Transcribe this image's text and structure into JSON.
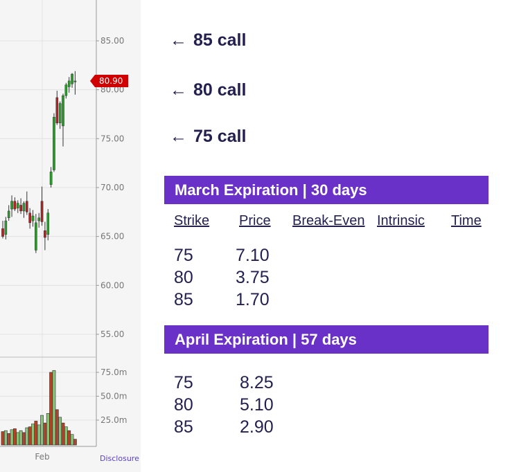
{
  "chart": {
    "y_ticks": [
      "85.00",
      "80.00",
      "75.00",
      "70.00",
      "65.00",
      "60.00",
      "55.00"
    ],
    "volume_ticks": [
      "75.0m",
      "50.0m",
      "25.0m"
    ],
    "x_tick": "Feb",
    "last_price": "80.90",
    "disclosure": "Disclosure",
    "colors": {
      "up": "#2e9a2e",
      "down": "#b22222",
      "vol_up": "#8bc27a",
      "vol_down": "#b0452a",
      "price_tag": "#d10000"
    }
  },
  "chart_data": {
    "type": "candlestick",
    "price_ticks": [
      85,
      80,
      75,
      70,
      65,
      60,
      55
    ],
    "volume_ticks_millions": [
      75,
      50,
      25
    ],
    "last_price": 80.9,
    "candles": [
      {
        "o": 65.8,
        "h": 66.6,
        "l": 64.8,
        "c": 65.0
      },
      {
        "o": 65.2,
        "h": 67.0,
        "l": 64.7,
        "c": 66.6
      },
      {
        "o": 66.9,
        "h": 68.2,
        "l": 66.6,
        "c": 67.6
      },
      {
        "o": 67.8,
        "h": 69.2,
        "l": 67.0,
        "c": 68.6
      },
      {
        "o": 68.6,
        "h": 69.0,
        "l": 67.6,
        "c": 67.8
      },
      {
        "o": 67.9,
        "h": 68.7,
        "l": 67.4,
        "c": 68.4
      },
      {
        "o": 68.2,
        "h": 68.9,
        "l": 67.3,
        "c": 67.6
      },
      {
        "o": 67.6,
        "h": 68.6,
        "l": 66.9,
        "c": 68.4
      },
      {
        "o": 68.6,
        "h": 69.6,
        "l": 67.2,
        "c": 67.5
      },
      {
        "o": 67.4,
        "h": 67.9,
        "l": 65.8,
        "c": 66.4
      },
      {
        "o": 66.6,
        "h": 67.7,
        "l": 66.0,
        "c": 67.1
      },
      {
        "o": 63.6,
        "h": 67.3,
        "l": 63.3,
        "c": 66.4
      },
      {
        "o": 66.6,
        "h": 67.4,
        "l": 65.9,
        "c": 66.9
      },
      {
        "o": 68.6,
        "h": 70.1,
        "l": 66.1,
        "c": 66.5
      },
      {
        "o": 65.6,
        "h": 66.5,
        "l": 63.6,
        "c": 64.9
      },
      {
        "o": 65.2,
        "h": 67.8,
        "l": 64.6,
        "c": 67.4
      },
      {
        "o": 70.3,
        "h": 72.1,
        "l": 70.0,
        "c": 71.6
      },
      {
        "o": 71.8,
        "h": 77.6,
        "l": 71.6,
        "c": 77.2
      },
      {
        "o": 79.2,
        "h": 79.9,
        "l": 76.4,
        "c": 76.6
      },
      {
        "o": 76.6,
        "h": 78.8,
        "l": 76.0,
        "c": 78.6
      },
      {
        "o": 76.3,
        "h": 79.6,
        "l": 74.2,
        "c": 79.4
      },
      {
        "o": 79.4,
        "h": 80.7,
        "l": 79.1,
        "c": 80.5
      },
      {
        "o": 80.3,
        "h": 81.3,
        "l": 79.7,
        "c": 80.9
      },
      {
        "o": 80.6,
        "h": 81.7,
        "l": 80.2,
        "c": 81.6
      },
      {
        "o": 80.8,
        "h": 81.9,
        "l": 79.5,
        "c": 80.9
      }
    ],
    "volumes_millions": [
      {
        "v": 13,
        "up": false
      },
      {
        "v": 14,
        "up": true
      },
      {
        "v": 11,
        "up": false
      },
      {
        "v": 15,
        "up": true
      },
      {
        "v": 16,
        "up": false
      },
      {
        "v": 12,
        "up": true
      },
      {
        "v": 14,
        "up": true
      },
      {
        "v": 12,
        "up": false
      },
      {
        "v": 17,
        "up": true
      },
      {
        "v": 18,
        "up": false
      },
      {
        "v": 21,
        "up": true
      },
      {
        "v": 24,
        "up": false
      },
      {
        "v": 20,
        "up": true
      },
      {
        "v": 30,
        "up": true
      },
      {
        "v": 22,
        "up": false
      },
      {
        "v": 32,
        "up": true
      },
      {
        "v": 75,
        "up": false
      },
      {
        "v": 77,
        "up": true
      },
      {
        "v": 36,
        "up": false
      },
      {
        "v": 28,
        "up": true
      },
      {
        "v": 22,
        "up": false
      },
      {
        "v": 18,
        "up": true
      },
      {
        "v": 14,
        "up": false
      },
      {
        "v": 10,
        "up": true
      },
      {
        "v": 5,
        "up": false
      }
    ]
  },
  "calls": [
    {
      "arrow": "←",
      "label": "85 call"
    },
    {
      "arrow": "←",
      "label": "80 call"
    },
    {
      "arrow": "←",
      "label": "75 call"
    }
  ],
  "march": {
    "header": "March Expiration | 30 days",
    "columns": [
      "Strike",
      "Price",
      "Break-Even",
      "Intrinsic",
      "Time"
    ],
    "rows": [
      {
        "strike": "75",
        "price": "7.10"
      },
      {
        "strike": "80",
        "price": "3.75"
      },
      {
        "strike": "85",
        "price": "1.70"
      }
    ]
  },
  "april": {
    "header": "April Expiration | 57 days",
    "rows": [
      {
        "strike": "75",
        "price": "8.25"
      },
      {
        "strike": "80",
        "price": "5.10"
      },
      {
        "strike": "85",
        "price": "2.90"
      }
    ]
  }
}
